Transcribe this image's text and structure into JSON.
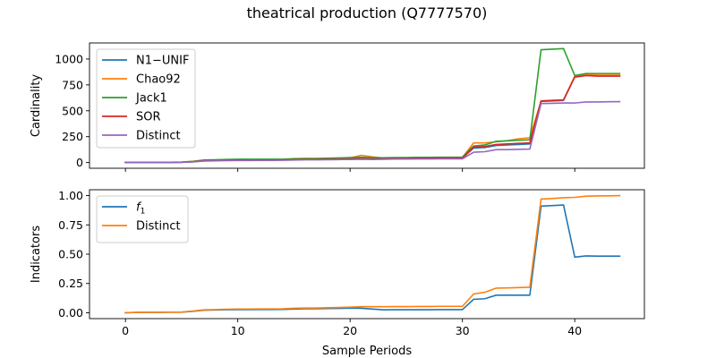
{
  "figure": {
    "title": "theatrical production (Q7777570)"
  },
  "chart_data": [
    {
      "type": "line",
      "ylabel": "Cardinality",
      "xlabel": "",
      "xlim": [
        -3.2,
        46.2
      ],
      "ylim": [
        -55,
        1155
      ],
      "xticks": [
        0,
        10,
        20,
        30,
        40
      ],
      "xtick_labels_shown": false,
      "yticks": [
        0,
        250,
        500,
        750,
        1000
      ],
      "ytick_labels": [
        "0",
        "250",
        "500",
        "750",
        "1000"
      ],
      "grid": false,
      "legend_position": "upper-left",
      "x": [
        0,
        1,
        2,
        3,
        4,
        5,
        6,
        7,
        8,
        9,
        10,
        11,
        12,
        13,
        14,
        15,
        16,
        17,
        18,
        19,
        20,
        21,
        22,
        23,
        24,
        25,
        26,
        27,
        28,
        29,
        30,
        31,
        32,
        33,
        34,
        35,
        36,
        37,
        38,
        39,
        40,
        41,
        42,
        43,
        44
      ],
      "series": [
        {
          "name": "N1−UNIF",
          "color": "#1f77b4",
          "values": [
            2,
            2,
            2,
            2,
            2,
            3,
            8,
            18,
            20,
            22,
            24,
            24,
            25,
            25,
            26,
            28,
            30,
            30,
            32,
            33,
            35,
            38,
            35,
            38,
            40,
            40,
            42,
            42,
            44,
            44,
            44,
            140,
            145,
            165,
            170,
            175,
            180,
            590,
            595,
            600,
            830,
            845,
            840,
            840,
            840
          ]
        },
        {
          "name": "Chao92",
          "color": "#ff7f0e",
          "values": [
            2,
            2,
            2,
            2,
            2,
            3,
            10,
            22,
            24,
            26,
            28,
            28,
            30,
            30,
            30,
            34,
            38,
            38,
            40,
            42,
            45,
            70,
            55,
            42,
            45,
            46,
            48,
            48,
            50,
            50,
            50,
            190,
            190,
            200,
            210,
            230,
            240,
            595,
            600,
            605,
            835,
            850,
            845,
            845,
            845
          ]
        },
        {
          "name": "Jack1",
          "color": "#2ca02c",
          "values": [
            3,
            3,
            3,
            3,
            3,
            5,
            12,
            25,
            27,
            30,
            32,
            32,
            32,
            32,
            32,
            38,
            40,
            40,
            42,
            45,
            48,
            50,
            48,
            46,
            48,
            48,
            50,
            50,
            52,
            52,
            52,
            160,
            170,
            205,
            210,
            215,
            220,
            1090,
            1095,
            1100,
            840,
            860,
            860,
            860,
            860
          ]
        },
        {
          "name": "SOR",
          "color": "#d62728",
          "values": [
            2,
            2,
            2,
            2,
            2,
            3,
            8,
            18,
            20,
            22,
            24,
            24,
            25,
            25,
            26,
            28,
            30,
            30,
            32,
            33,
            35,
            38,
            35,
            38,
            40,
            40,
            42,
            42,
            44,
            44,
            44,
            150,
            155,
            175,
            180,
            185,
            190,
            595,
            600,
            605,
            825,
            840,
            835,
            835,
            835
          ]
        },
        {
          "name": "Distinct",
          "color": "#9467bd",
          "values": [
            2,
            2,
            2,
            2,
            2,
            3,
            6,
            15,
            17,
            19,
            20,
            20,
            21,
            21,
            22,
            24,
            26,
            26,
            28,
            29,
            30,
            32,
            30,
            32,
            34,
            34,
            35,
            35,
            36,
            36,
            36,
            100,
            105,
            125,
            125,
            128,
            130,
            570,
            572,
            575,
            575,
            585,
            585,
            587,
            588
          ]
        }
      ]
    },
    {
      "type": "line",
      "ylabel": "Indicators",
      "xlabel": "Sample Periods",
      "xlim": [
        -3.2,
        46.2
      ],
      "ylim": [
        -0.05,
        1.05
      ],
      "xticks": [
        0,
        10,
        20,
        30,
        40
      ],
      "xtick_labels": [
        "0",
        "10",
        "20",
        "30",
        "40"
      ],
      "yticks": [
        0,
        0.25,
        0.5,
        0.75,
        1.0
      ],
      "ytick_labels": [
        "0.00",
        "0.25",
        "0.50",
        "0.75",
        "1.00"
      ],
      "grid": false,
      "legend_position": "upper-left",
      "x": [
        0,
        1,
        2,
        3,
        4,
        5,
        6,
        7,
        8,
        9,
        10,
        11,
        12,
        13,
        14,
        15,
        16,
        17,
        18,
        19,
        20,
        21,
        22,
        23,
        24,
        25,
        26,
        27,
        28,
        29,
        30,
        31,
        32,
        33,
        34,
        35,
        36,
        37,
        38,
        39,
        40,
        41,
        42,
        43,
        44
      ],
      "series": [
        {
          "name": "f1",
          "color": "#1f77b4",
          "values": [
            0.0,
            0.003,
            0.004,
            0.004,
            0.005,
            0.005,
            0.012,
            0.022,
            0.024,
            0.026,
            0.027,
            0.027,
            0.028,
            0.028,
            0.029,
            0.032,
            0.034,
            0.034,
            0.036,
            0.037,
            0.04,
            0.038,
            0.032,
            0.025,
            0.026,
            0.026,
            0.026,
            0.026,
            0.027,
            0.027,
            0.027,
            0.115,
            0.12,
            0.15,
            0.15,
            0.15,
            0.15,
            0.91,
            0.915,
            0.92,
            0.475,
            0.485,
            0.483,
            0.483,
            0.483
          ]
        },
        {
          "name": "Distinct",
          "color": "#ff7f0e",
          "values": [
            0.0,
            0.003,
            0.004,
            0.004,
            0.005,
            0.006,
            0.015,
            0.025,
            0.027,
            0.03,
            0.032,
            0.032,
            0.033,
            0.033,
            0.034,
            0.038,
            0.04,
            0.04,
            0.043,
            0.045,
            0.048,
            0.052,
            0.052,
            0.052,
            0.053,
            0.053,
            0.054,
            0.054,
            0.055,
            0.055,
            0.055,
            0.16,
            0.175,
            0.21,
            0.212,
            0.215,
            0.218,
            0.97,
            0.975,
            0.982,
            0.985,
            0.995,
            0.997,
            0.998,
            1.0
          ]
        }
      ]
    }
  ]
}
